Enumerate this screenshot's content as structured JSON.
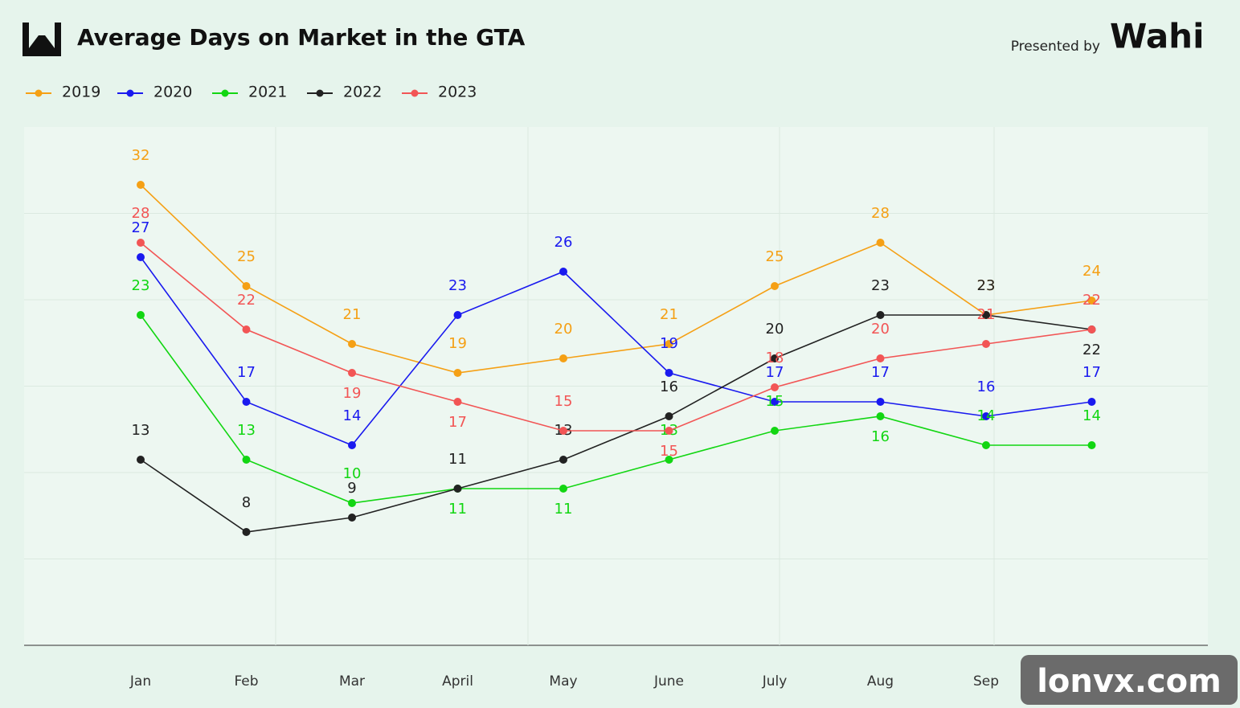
{
  "chart_data": {
    "type": "line",
    "title": "Average Days on Market in the GTA",
    "presenter_label": "Presented by",
    "brand": "Wahi",
    "watermark": "lonvx.com",
    "categories": [
      "Jan",
      "Feb",
      "Mar",
      "April",
      "May",
      "June",
      "July",
      "Aug",
      "Sep",
      null
    ],
    "series": [
      {
        "name": "2019",
        "color": "#f5a015",
        "values": [
          32,
          25,
          21,
          19,
          20,
          21,
          25,
          28,
          23,
          24
        ]
      },
      {
        "name": "2020",
        "color": "#1a1aef",
        "values": [
          27,
          17,
          14,
          23,
          26,
          19,
          17,
          17,
          16,
          17
        ]
      },
      {
        "name": "2021",
        "color": "#12d612",
        "values": [
          23,
          13,
          10,
          11,
          11,
          13,
          15,
          16,
          14,
          14
        ]
      },
      {
        "name": "2022",
        "color": "#222222",
        "values": [
          13,
          8,
          9,
          11,
          13,
          16,
          20,
          23,
          23,
          22
        ]
      },
      {
        "name": "2023",
        "color": "#f25555",
        "values": [
          28,
          22,
          19,
          17,
          15,
          15,
          18,
          20,
          21,
          22
        ]
      }
    ],
    "ylim": [
      0,
      36
    ],
    "grid": true,
    "legend": "top-left"
  }
}
